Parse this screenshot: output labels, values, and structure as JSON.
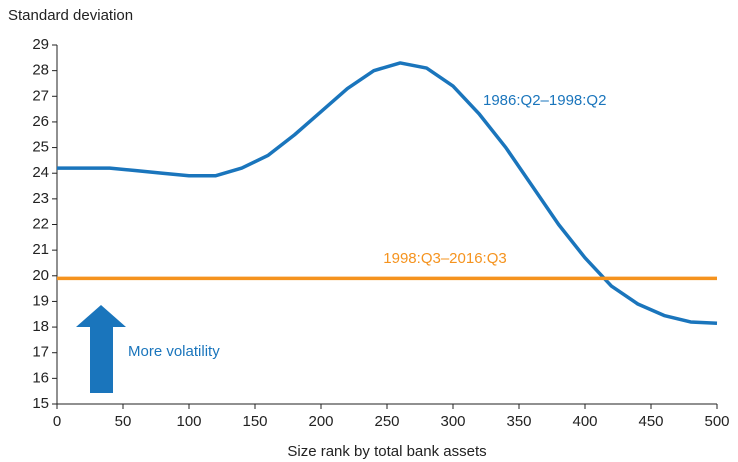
{
  "chart_data": {
    "type": "line",
    "y_label": "Standard deviation",
    "x_label": "Size rank by total bank assets",
    "x": [
      0,
      20,
      40,
      60,
      80,
      100,
      120,
      140,
      160,
      180,
      200,
      220,
      240,
      260,
      280,
      300,
      320,
      340,
      360,
      380,
      400,
      420,
      440,
      460,
      480,
      500
    ],
    "series": [
      {
        "name": "1986:Q2–1998:Q2",
        "color": "#1a75bc",
        "values": [
          24.2,
          24.2,
          24.2,
          24.1,
          24.0,
          23.9,
          23.9,
          24.2,
          24.7,
          25.5,
          26.4,
          27.3,
          28.0,
          28.3,
          28.1,
          27.4,
          26.3,
          25.0,
          23.5,
          22.0,
          20.7,
          19.6,
          18.9,
          18.45,
          18.2,
          18.15
        ]
      },
      {
        "name": "1998:Q3–2016:Q3",
        "color": "#f5931e",
        "values": [
          19.9,
          19.9,
          19.9,
          19.9,
          19.9,
          19.9,
          19.9,
          19.9,
          19.9,
          19.9,
          19.9,
          19.9,
          19.9,
          19.9,
          19.9,
          19.9,
          19.9,
          19.9,
          19.9,
          19.9,
          19.9,
          19.9,
          19.9,
          19.9,
          19.9,
          19.9
        ]
      }
    ],
    "annotation": "More volatility",
    "xlim": [
      0,
      500
    ],
    "xticks": [
      0,
      50,
      100,
      150,
      200,
      250,
      300,
      350,
      400,
      450,
      500
    ],
    "ylim": [
      15,
      29
    ],
    "yticks": [
      15,
      16,
      17,
      18,
      19,
      20,
      21,
      22,
      23,
      24,
      25,
      26,
      27,
      28,
      29
    ],
    "grid": false
  }
}
